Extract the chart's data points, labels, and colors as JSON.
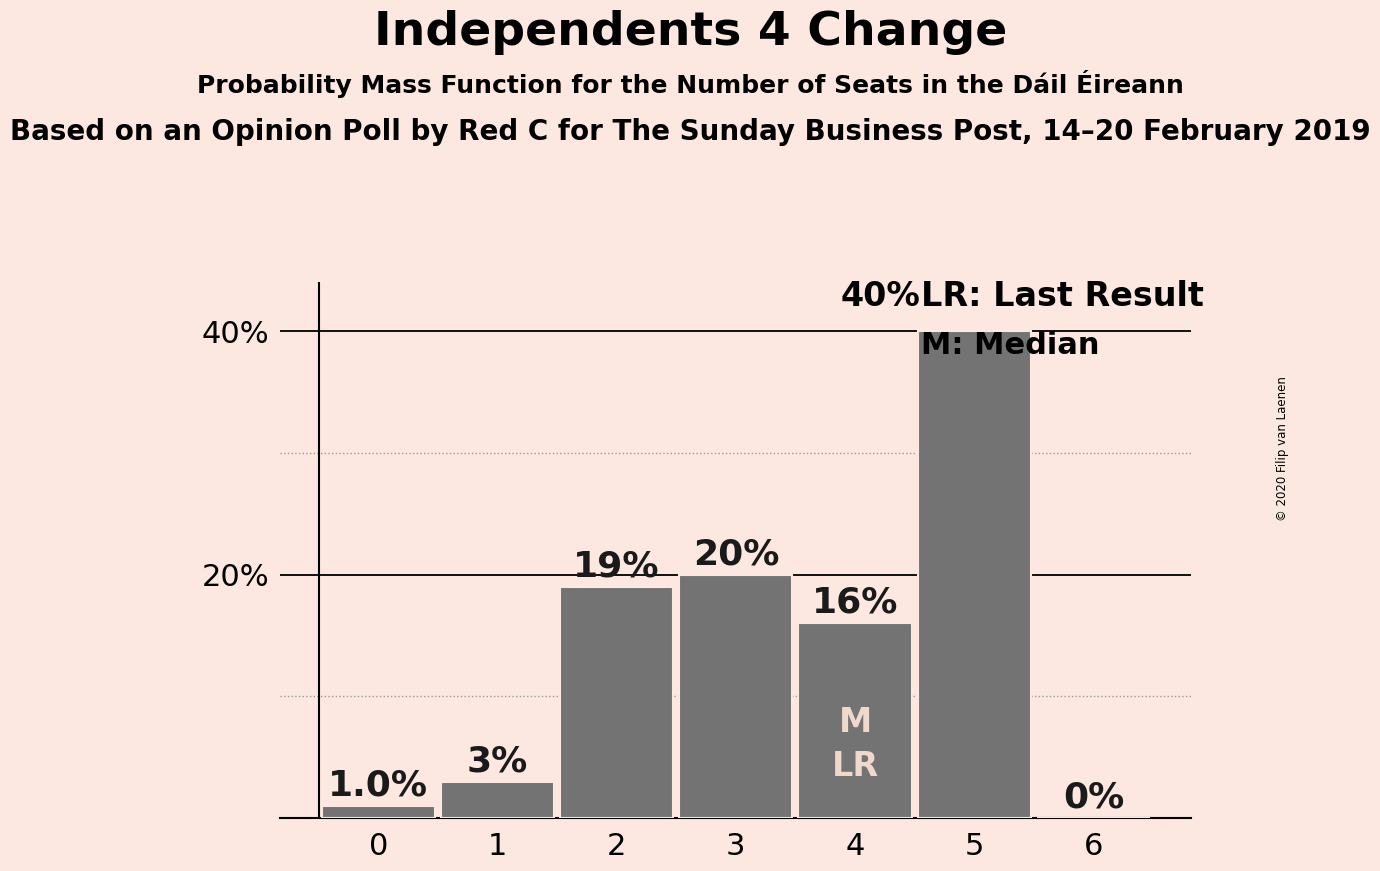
{
  "title": "Independents 4 Change",
  "subtitle1": "Probability Mass Function for the Number of Seats in the Dáil Éireann",
  "subtitle2": "Based on an Opinion Poll by Red C for The Sunday Business Post, 14–20 February 2019",
  "copyright": "© 2020 Filip van Laenen",
  "categories": [
    0,
    1,
    2,
    3,
    4,
    5,
    6
  ],
  "values": [
    1.0,
    3.0,
    19.0,
    20.0,
    16.0,
    40.0,
    0.0
  ],
  "bar_color": "#737373",
  "background_color": "#fce8e0",
  "bar_labels": [
    "1.0%",
    "3%",
    "19%",
    "20%",
    "16%",
    "40%",
    "0%"
  ],
  "bar_label_above_colors": [
    "#1a1a1a",
    "#1a1a1a",
    "#1a1a1a",
    "#1a1a1a",
    "#1a1a1a",
    "#1a1a1a",
    "#1a1a1a"
  ],
  "ml_text": "M\nLR",
  "ml_color": "#f0d8cc",
  "median_bar": 4,
  "legend_lr_text": "LR: Last Result",
  "legend_m_text": "M: Median",
  "ylim": [
    0,
    44
  ],
  "yticks": [
    20,
    40
  ],
  "grid_dotted": [
    10,
    30
  ],
  "solid_grid": [
    20,
    40
  ],
  "bar_edge_color": "#fce8e0",
  "title_fontsize": 34,
  "subtitle_fontsize": 18,
  "subtitle2_fontsize": 20,
  "label_fontsize": 26,
  "tick_fontsize": 22,
  "legend_fontsize": 24,
  "ml_fontsize": 24
}
